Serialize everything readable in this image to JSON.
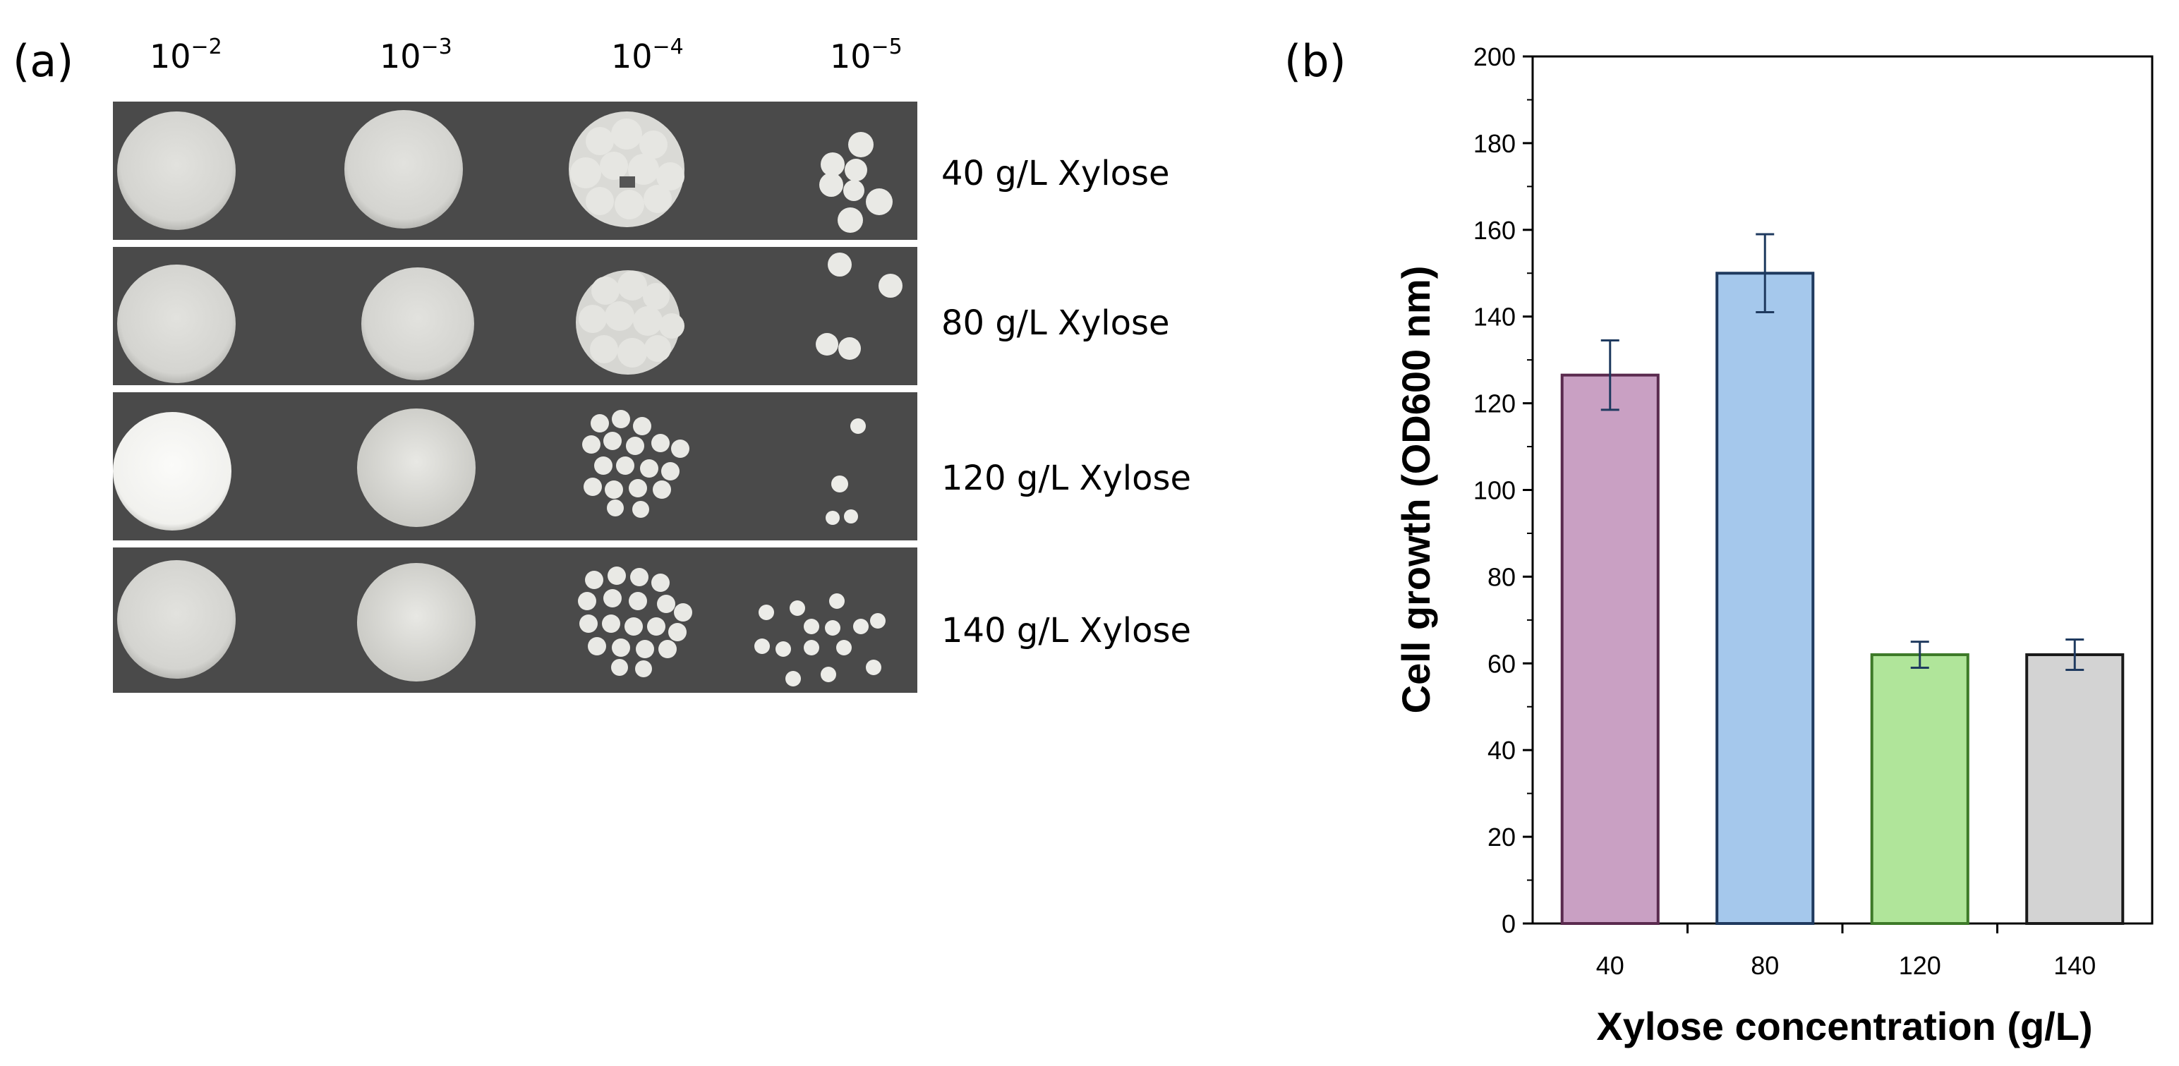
{
  "panel_a": {
    "label": "(a)",
    "dilutions": [
      {
        "base": "10",
        "exp": "−2"
      },
      {
        "base": "10",
        "exp": "−3"
      },
      {
        "base": "10",
        "exp": "−4"
      },
      {
        "base": "10",
        "exp": "−5"
      }
    ],
    "rows": [
      {
        "label": "40 g/L Xylose"
      },
      {
        "label": "80 g/L Xylose"
      },
      {
        "label": "120 g/L Xylose"
      },
      {
        "label": "140 g/L Xylose"
      }
    ]
  },
  "panel_b": {
    "label": "(b)"
  },
  "chart_data": {
    "type": "bar",
    "title": "",
    "categories": [
      "40",
      "80",
      "120",
      "140"
    ],
    "values": [
      126.5,
      150,
      62,
      62
    ],
    "errors": [
      8,
      9,
      3,
      3.5
    ],
    "colors": [
      "#c9a0c3",
      "#a5c8ec",
      "#b0e59a",
      "#d3d3d3"
    ],
    "edge_colors": [
      "#5a2a4e",
      "#1f3a5f",
      "#3d7a28",
      "#1a1a1a"
    ],
    "xlabel": "Xylose concentration (g/L)",
    "ylabel": "Cell growth (OD600 nm)",
    "ylim": [
      0,
      200
    ],
    "yticks": [
      "0",
      "20",
      "40",
      "60",
      "80",
      "100",
      "120",
      "140",
      "160",
      "180",
      "200"
    ],
    "grid": false
  }
}
